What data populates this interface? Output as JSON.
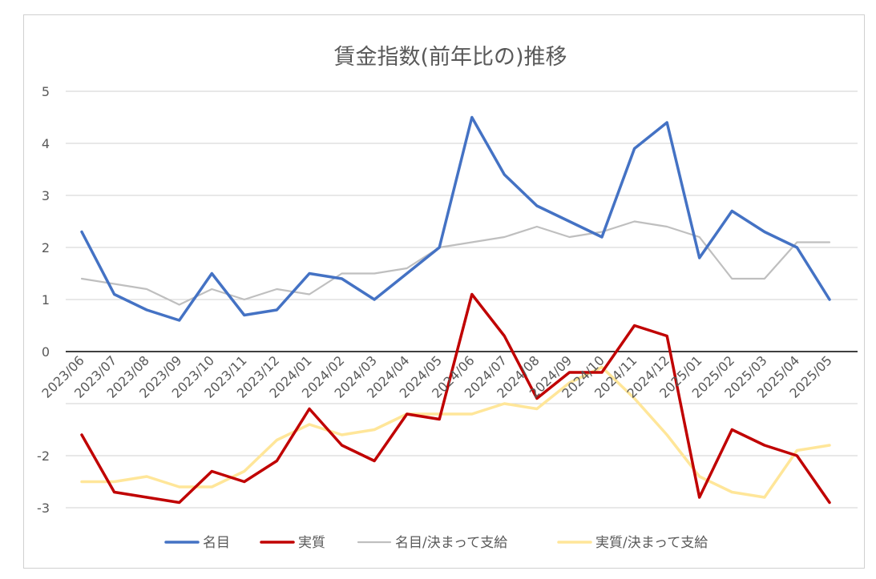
{
  "chart_data": {
    "type": "line",
    "title": "賃金指数(前年比の)推移",
    "xlabel": "",
    "ylabel": "",
    "ylim": [
      -3,
      5
    ],
    "yticks": [
      5,
      4,
      3,
      2,
      1,
      0,
      -2,
      -3
    ],
    "grid": true,
    "legend_position": "bottom",
    "categories": [
      "2023/06",
      "2023/07",
      "2023/08",
      "2023/09",
      "2023/10",
      "2023/11",
      "2023/12",
      "2024/01",
      "2024/02",
      "2024/03",
      "2024/04",
      "2024/05",
      "2024/06",
      "2024/07",
      "2024/08",
      "2024/09",
      "2024/10",
      "2024/11",
      "2024/12",
      "2025/01",
      "2025/02",
      "2025/03",
      "2025/04",
      "2025/05"
    ],
    "series": [
      {
        "name": "名目",
        "color": "#4472C4",
        "width": 3.5,
        "values": [
          2.3,
          1.1,
          0.8,
          0.6,
          1.5,
          0.7,
          0.8,
          1.5,
          1.4,
          1.0,
          1.5,
          2.0,
          4.5,
          3.4,
          2.8,
          2.5,
          2.2,
          3.9,
          4.4,
          1.8,
          2.7,
          2.3,
          2.0,
          1.0
        ]
      },
      {
        "name": "実質",
        "color": "#C00000",
        "width": 3.5,
        "values": [
          -1.6,
          -2.7,
          -2.8,
          -2.9,
          -2.3,
          -2.5,
          -2.1,
          -1.1,
          -1.8,
          -2.1,
          -1.2,
          -1.3,
          1.1,
          0.3,
          -0.9,
          -0.4,
          -0.4,
          0.5,
          0.3,
          -2.8,
          -1.5,
          -1.8,
          -2.0,
          -2.9
        ]
      },
      {
        "name": "名目/決まって支給",
        "color": "#BFBFBF",
        "width": 2.2,
        "values": [
          1.4,
          1.3,
          1.2,
          0.9,
          1.2,
          1.0,
          1.2,
          1.1,
          1.5,
          1.5,
          1.6,
          2.0,
          2.1,
          2.2,
          2.4,
          2.2,
          2.3,
          2.5,
          2.4,
          2.2,
          1.4,
          1.4,
          2.1,
          2.1
        ]
      },
      {
        "name": "実質/決まって支給",
        "color": "#FFE699",
        "width": 3.5,
        "values": [
          -2.5,
          -2.5,
          -2.4,
          -2.6,
          -2.6,
          -2.3,
          -1.7,
          -1.4,
          -1.6,
          -1.5,
          -1.2,
          -1.2,
          -1.2,
          -1.0,
          -1.1,
          -0.6,
          -0.3,
          -0.9,
          -1.6,
          -2.4,
          -2.7,
          -2.8,
          -1.9,
          -1.8
        ]
      }
    ]
  }
}
